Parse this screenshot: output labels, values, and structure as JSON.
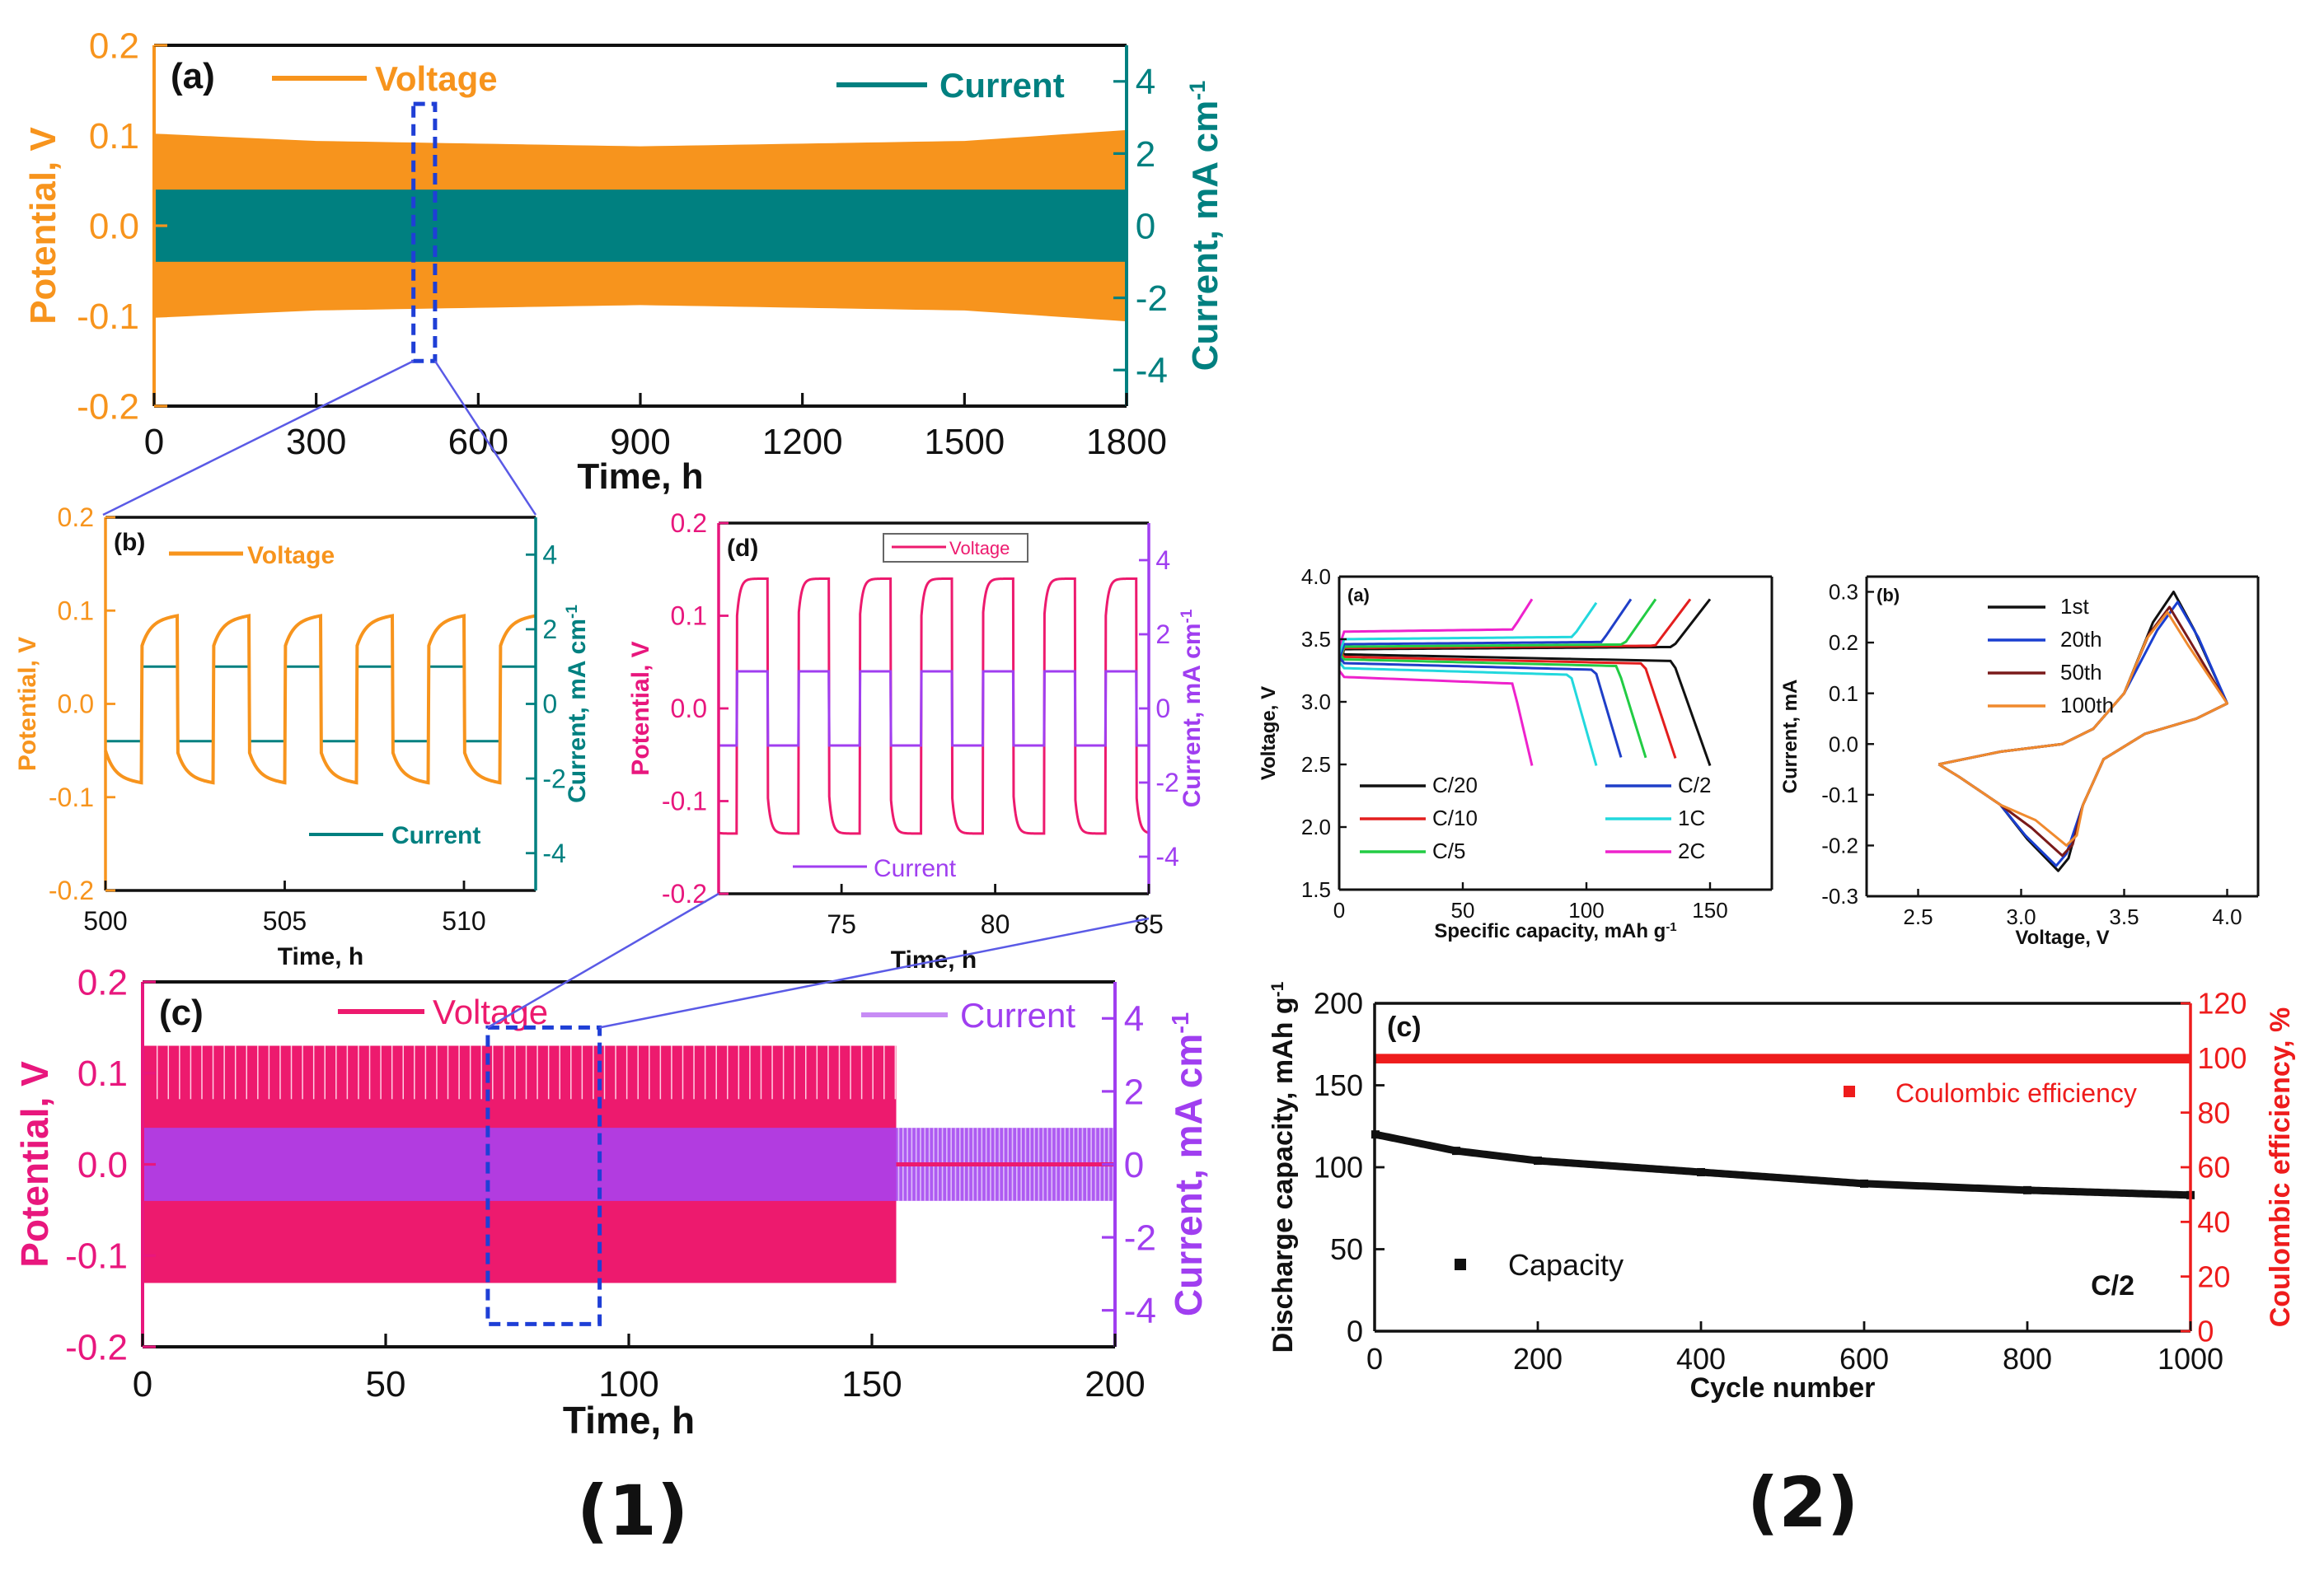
{
  "figure_labels": [
    "(1)",
    "(2)"
  ],
  "colors": {
    "orange": "#f7941d",
    "teal": "#008080",
    "pink": "#ed1a6e",
    "pink_axis": "#e8177d",
    "purple": "#a03ef0",
    "blue_box": "#1f3fd6",
    "red": "#ee1c1c",
    "black": "#111111",
    "cv_colors": [
      "#111111",
      "#1a3fd0",
      "#7a1a1a",
      "#f08a2e"
    ]
  },
  "chart_data": [
    {
      "id": "1a",
      "type": "line",
      "panel_label": "(a)",
      "xlabel": "Time, h",
      "ylabel": "Potential, V",
      "y2label": "Current, mA cm-1",
      "xlim": [
        0,
        1800
      ],
      "ylim": [
        -0.2,
        0.2
      ],
      "y2lim": [
        -5,
        5
      ],
      "xticks": [
        "0",
        "300",
        "600",
        "900",
        "1200",
        "1500",
        "1800"
      ],
      "yticks": [
        "-0.2",
        "-0.1",
        "0.0",
        "0.1",
        "0.2"
      ],
      "y2ticks": [
        "-4",
        "-2",
        "0",
        "2",
        "4"
      ],
      "series": [
        {
          "name": "Voltage",
          "axis": "left",
          "envelope_time_h": [
            0,
            300,
            900,
            1500,
            1800
          ],
          "upper_V": [
            0.102,
            0.094,
            0.088,
            0.094,
            0.106
          ],
          "lower_V": [
            -0.102,
            -0.094,
            -0.088,
            -0.094,
            -0.106
          ]
        },
        {
          "name": "Current",
          "axis": "right",
          "amplitude_mA_cm2": 1.0
        }
      ],
      "zoom_box": {
        "x": [
          480,
          520
        ],
        "y": [
          -0.15,
          0.135
        ]
      }
    },
    {
      "id": "1b",
      "type": "line",
      "panel_label": "(b)",
      "xlabel": "Time, h",
      "ylabel": "Potential, V",
      "y2label": "Current, mA cm-1",
      "xlim": [
        500,
        512
      ],
      "ylim": [
        -0.2,
        0.2
      ],
      "y2lim": [
        -5,
        5
      ],
      "xticks": [
        "500",
        "505",
        "510"
      ],
      "yticks": [
        "-0.2",
        "-0.1",
        "0.0",
        "0.1",
        "0.2"
      ],
      "y2ticks": [
        "-4",
        "-2",
        "0",
        "2",
        "4"
      ],
      "series": [
        {
          "name": "Voltage",
          "axis": "left",
          "period_h": 2,
          "high_V": 0.095,
          "low_V": -0.085
        },
        {
          "name": "Current",
          "axis": "right",
          "period_h": 2,
          "amplitude_mA_cm2": 1.0
        }
      ]
    },
    {
      "id": "1c",
      "type": "line",
      "panel_label": "(c)",
      "xlabel": "Time, h",
      "ylabel": "Potential, V",
      "y2label": "Current, mA cm-1",
      "xlim": [
        0,
        200
      ],
      "ylim": [
        -0.2,
        0.2
      ],
      "y2lim": [
        -5,
        5
      ],
      "xticks": [
        "0",
        "50",
        "100",
        "150",
        "200"
      ],
      "yticks": [
        "-0.2",
        "-0.1",
        "0.0",
        "0.1",
        "0.2"
      ],
      "y2ticks": [
        "-4",
        "-2",
        "0",
        "2",
        "4"
      ],
      "series": [
        {
          "name": "Voltage",
          "axis": "left",
          "amplitude_V_until_155h": 0.13,
          "amplitude_V_after_155h": 0.006
        },
        {
          "name": "Current",
          "axis": "right",
          "amplitude_mA_cm2": 1.0
        }
      ],
      "zoom_box": {
        "x": [
          71,
          94
        ],
        "y": [
          -0.175,
          0.15
        ]
      }
    },
    {
      "id": "1d",
      "type": "line",
      "panel_label": "(d)",
      "xlabel": "Time, h",
      "ylabel": "Potential, V",
      "y2label": "Current, mA cm-1",
      "xlim": [
        71,
        85
      ],
      "ylim": [
        -0.2,
        0.2
      ],
      "y2lim": [
        -5,
        5
      ],
      "xticks": [
        "75",
        "80",
        "85"
      ],
      "yticks": [
        "-0.2",
        "-0.1",
        "0.0",
        "0.1",
        "0.2"
      ],
      "y2ticks": [
        "-4",
        "-2",
        "0",
        "2",
        "4"
      ],
      "series": [
        {
          "name": "Voltage",
          "axis": "left",
          "period_h": 2,
          "high_V": 0.14,
          "low_V": -0.135
        },
        {
          "name": "Current",
          "axis": "right",
          "period_h": 2,
          "amplitude_mA_cm2": 1.0
        }
      ]
    },
    {
      "id": "2a",
      "type": "line",
      "panel_label": "(a)",
      "xlabel": "Specific capacity, mAh g-1",
      "ylabel": "Voltage, V",
      "xlim": [
        0,
        175
      ],
      "ylim": [
        1.5,
        4.0
      ],
      "xticks": [
        "0",
        "50",
        "100",
        "150"
      ],
      "yticks": [
        "1.5",
        "2.0",
        "2.5",
        "3.0",
        "3.5",
        "4.0"
      ],
      "series": [
        {
          "name": "C/20",
          "charge_end_capacity": 150,
          "charge_plateau_V": 3.42,
          "discharge_end_capacity": 150,
          "discharge_plateau_V": 3.38
        },
        {
          "name": "C/10",
          "charge_end_capacity": 142,
          "charge_plateau_V": 3.43,
          "discharge_end_capacity": 137,
          "discharge_plateau_V": 3.36
        },
        {
          "name": "C/5",
          "charge_end_capacity": 128,
          "charge_plateau_V": 3.44,
          "discharge_end_capacity": 125,
          "discharge_plateau_V": 3.34
        },
        {
          "name": "C/2",
          "charge_end_capacity": 118,
          "charge_plateau_V": 3.46,
          "discharge_end_capacity": 115,
          "discharge_plateau_V": 3.31
        },
        {
          "name": "1C",
          "charge_end_capacity": 105,
          "charge_plateau_V": 3.5,
          "discharge_end_capacity": 104,
          "discharge_plateau_V": 3.27
        },
        {
          "name": "2C",
          "charge_end_capacity": 78,
          "charge_plateau_V": 3.56,
          "discharge_end_capacity": 78,
          "discharge_plateau_V": 3.2
        }
      ]
    },
    {
      "id": "2b",
      "type": "line",
      "panel_label": "(b)",
      "xlabel": "Voltage, V",
      "ylabel": "Current, mA",
      "xlim": [
        2.25,
        4.15
      ],
      "ylim": [
        -0.3,
        0.33
      ],
      "xticks": [
        "2.5",
        "3.0",
        "3.5",
        "4.0"
      ],
      "yticks": [
        "-0.3",
        "-0.2",
        "-0.1",
        "0.0",
        "0.1",
        "0.2",
        "0.3"
      ],
      "series": [
        {
          "name": "1st",
          "anodic_peak": [
            3.74,
            0.3
          ],
          "cathodic_peak": [
            3.18,
            -0.25
          ]
        },
        {
          "name": "20th",
          "anodic_peak": [
            3.76,
            0.28
          ],
          "cathodic_peak": [
            3.17,
            -0.24
          ]
        },
        {
          "name": "50th",
          "anodic_peak": [
            3.72,
            0.27
          ],
          "cathodic_peak": [
            3.2,
            -0.22
          ]
        },
        {
          "name": "100th",
          "anodic_peak": [
            3.71,
            0.26
          ],
          "cathodic_peak": [
            3.22,
            -0.2
          ]
        }
      ]
    },
    {
      "id": "2c",
      "type": "scatter",
      "panel_label": "(c)",
      "xlabel": "Cycle number",
      "ylabel": "Discharge capacity, mAh g-1",
      "y2label": "Coulombic efficiency, %",
      "xlim": [
        0,
        1000
      ],
      "ylim": [
        0,
        200
      ],
      "y2lim": [
        0,
        120
      ],
      "xticks": [
        "0",
        "200",
        "400",
        "600",
        "800",
        "1000"
      ],
      "yticks": [
        "0",
        "50",
        "100",
        "150",
        "200"
      ],
      "y2ticks": [
        "0",
        "20",
        "40",
        "60",
        "80",
        "100",
        "120"
      ],
      "annotation": "C/2",
      "series": [
        {
          "name": "Capacity",
          "axis": "left",
          "cycle": [
            1,
            100,
            200,
            400,
            600,
            800,
            1000
          ],
          "value": [
            120,
            110,
            104,
            97,
            90,
            86,
            83
          ]
        },
        {
          "name": "Coulombic efficiency",
          "axis": "right",
          "cycle": [
            1,
            1000
          ],
          "value": [
            100,
            100
          ]
        }
      ]
    }
  ]
}
